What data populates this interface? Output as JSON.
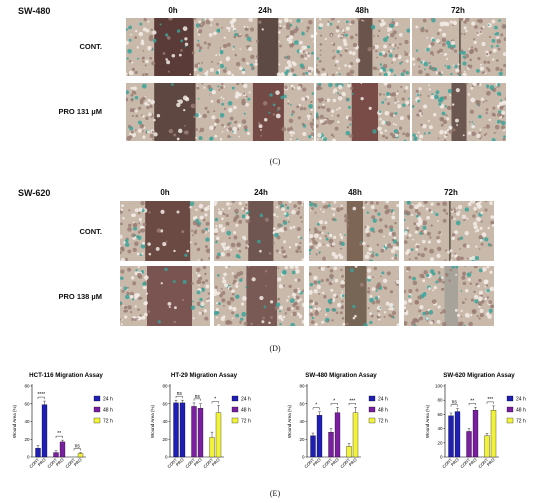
{
  "panel_c": {
    "cell_line": "SW-480",
    "timepoints": [
      "0h",
      "24h",
      "48h",
      "72h"
    ],
    "rows": [
      "CONT.",
      "PRO 131 µM"
    ],
    "letter": "(C)"
  },
  "panel_d": {
    "cell_line": "SW-620",
    "timepoints": [
      "0h",
      "24h",
      "48h",
      "72h"
    ],
    "rows": [
      "CONT.",
      "PRO 138 µM"
    ],
    "letter": "(D)"
  },
  "panel_e": {
    "letter": "(E)"
  },
  "colors": {
    "h24": "#1f1fb5",
    "h48": "#7a1fa0",
    "h72": "#f2f23a",
    "tissue": "#c8b8a8",
    "wound": "#6e4a42"
  },
  "chart_data": [
    {
      "type": "bar",
      "title": "HCT-116 Migration Assay",
      "ylabel": "Wound Area (%)",
      "ylim": [
        0,
        80
      ],
      "yticks": [
        0,
        20,
        40,
        60,
        80
      ],
      "categories": [
        "CONT",
        "PRO",
        "CONT",
        "PRO",
        "CONT",
        "PRO"
      ],
      "groups": [
        "24 h",
        "48 h",
        "72 h"
      ],
      "values": [
        10,
        59,
        5,
        17,
        0,
        4
      ],
      "errors": [
        3,
        4,
        2,
        2,
        0,
        1
      ],
      "significance": [
        "****",
        "**",
        "ns"
      ],
      "legend": [
        "24 h",
        "48 h",
        "72 h"
      ]
    },
    {
      "type": "bar",
      "title": "HT-29 Migration Assay",
      "ylabel": "Wound Area (%)",
      "ylim": [
        0,
        80
      ],
      "yticks": [
        0,
        20,
        40,
        60,
        80
      ],
      "categories": [
        "CONT",
        "PRO",
        "CONT",
        "PRO",
        "CONT",
        "PRO"
      ],
      "groups": [
        "24 h",
        "48 h",
        "72 h"
      ],
      "values": [
        61,
        61,
        57,
        55,
        22,
        50
      ],
      "errors": [
        3,
        3,
        4,
        5,
        6,
        8
      ],
      "significance": [
        "ns",
        "ns",
        "*"
      ],
      "legend": [
        "24 h",
        "48 h",
        "72 h"
      ]
    },
    {
      "type": "bar",
      "title": "SW-480 Migration Assay",
      "ylabel": "Wound Area (%)",
      "ylim": [
        0,
        80
      ],
      "yticks": [
        0,
        20,
        40,
        60,
        80
      ],
      "categories": [
        "CONT",
        "PRO",
        "CONT",
        "PRO",
        "CONT",
        "PRO"
      ],
      "groups": [
        "24 h",
        "48 h",
        "72 h"
      ],
      "values": [
        24,
        47,
        28,
        50,
        12,
        50
      ],
      "errors": [
        3,
        4,
        4,
        6,
        3,
        6
      ],
      "significance": [
        "*",
        "*",
        "***"
      ],
      "legend": [
        "24 h",
        "48 h",
        "72 h"
      ]
    },
    {
      "type": "bar",
      "title": "SW-620 Migration Assay",
      "ylabel": "Wound Area (%)",
      "ylim": [
        0,
        100
      ],
      "yticks": [
        0,
        20,
        40,
        60,
        80,
        100
      ],
      "categories": [
        "CONT",
        "PRO",
        "CONT",
        "PRO",
        "CONT",
        "PRO"
      ],
      "groups": [
        "24 h",
        "48 h",
        "72 h"
      ],
      "values": [
        58,
        64,
        36,
        66,
        30,
        66
      ],
      "errors": [
        4,
        4,
        4,
        4,
        3,
        6
      ],
      "significance": [
        "ns",
        "**",
        "***"
      ],
      "legend": [
        "24 h",
        "48 h",
        "72 h"
      ]
    }
  ]
}
